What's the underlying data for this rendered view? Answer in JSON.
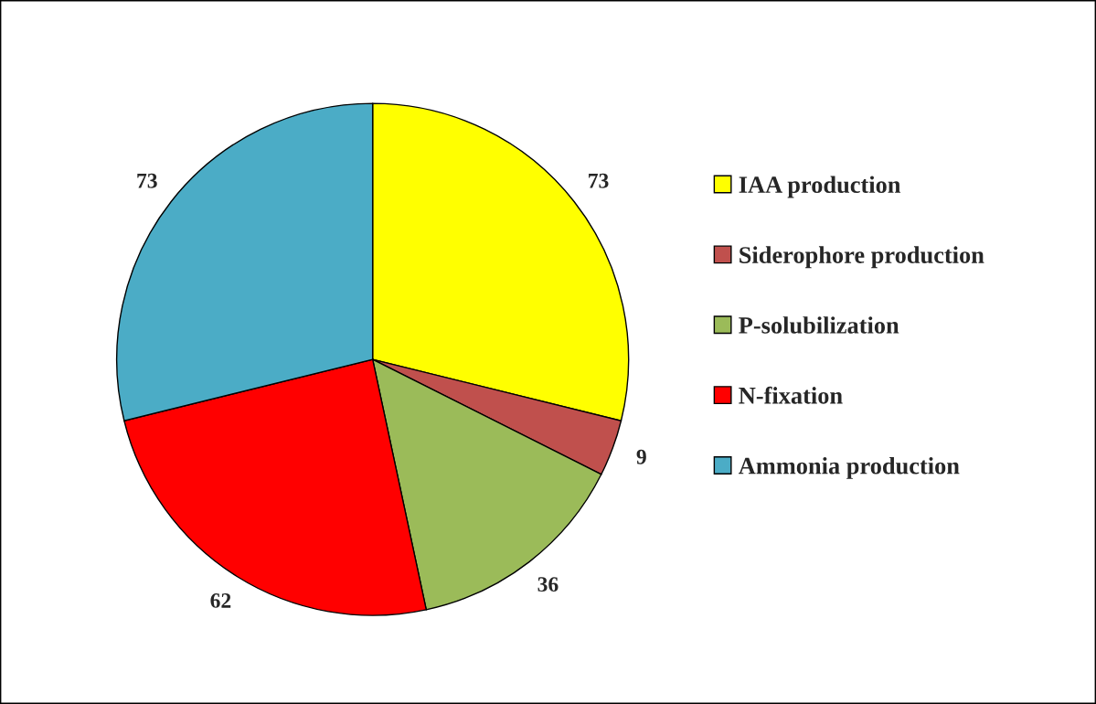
{
  "chart_data": {
    "type": "pie",
    "categories": [
      "IAA production",
      "Siderophore production",
      "P-solubilization",
      "N-fixation",
      "Ammonia production"
    ],
    "values": [
      73,
      9,
      36,
      62,
      73
    ],
    "colors": [
      "#ffff00",
      "#c0504d",
      "#9bbb59",
      "#ff0000",
      "#4bacc6"
    ],
    "data_labels": true,
    "legend": "right"
  }
}
